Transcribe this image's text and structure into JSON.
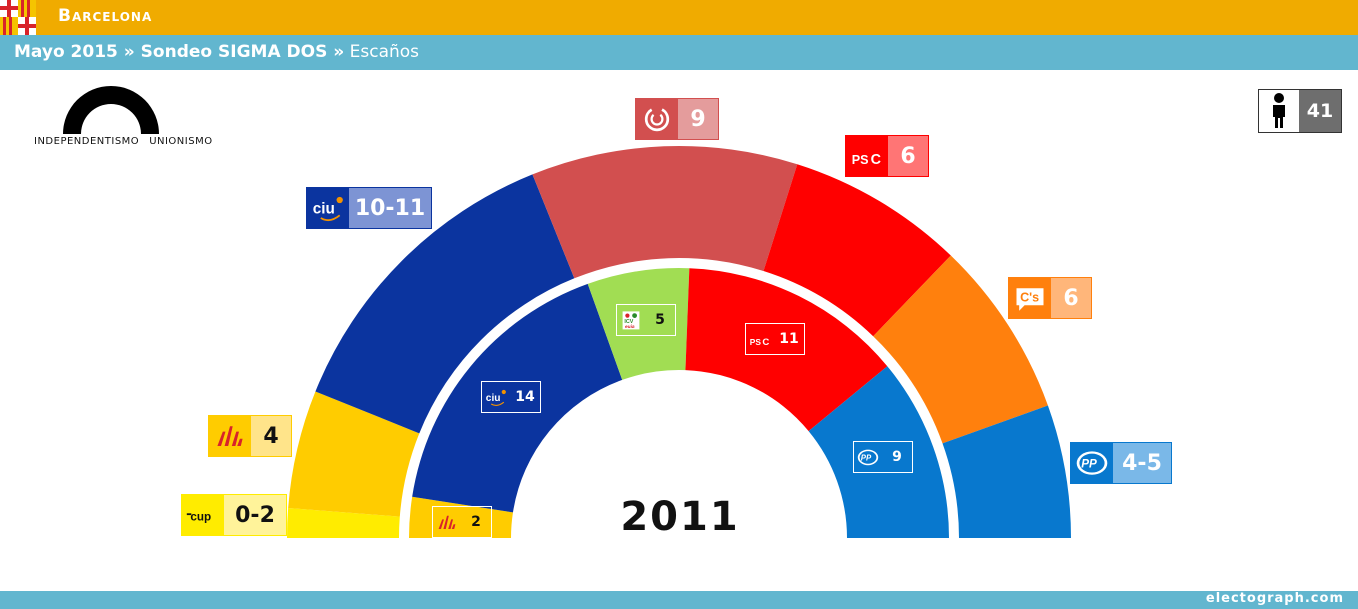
{
  "header": {
    "city": "Barcelona",
    "subtitle_bold": "Mayo 2015 » Sondeo SIGMA DOS »",
    "subtitle_rest": " Escaños"
  },
  "legend": {
    "left_label": "INDEPENDENTISMO",
    "right_label": "UNIONISMO"
  },
  "total_seats": {
    "icon": "person-icon",
    "value": "41"
  },
  "footer": {
    "credit": "electograph.com"
  },
  "chart_data": [
    {
      "type": "pie",
      "shape": "hemicycle-outer-ring",
      "title": "Sondeo SIGMA DOS",
      "total": 41,
      "parties": [
        {
          "name": "CUP",
          "logo_text": "cup",
          "label": "0-2",
          "seats": 1,
          "color": "#ffec00",
          "label_bg": "#fff39a"
        },
        {
          "name": "ERC",
          "logo_text": "ERC",
          "label": "4",
          "seats": 4,
          "color": "#ffcc00",
          "label_bg": "#ffe48a"
        },
        {
          "name": "CiU",
          "logo_text": "ciu",
          "label": "10-11",
          "seats": 10.5,
          "color": "#0b349f",
          "label_bg": "#7d94d4"
        },
        {
          "name": "BComú",
          "logo_text": "BC",
          "label": "9",
          "seats": 9,
          "color": "#d24f4f",
          "label_bg": "#e49c9c"
        },
        {
          "name": "PSC",
          "logo_text": "PSC",
          "label": "6",
          "seats": 6,
          "color": "#ff0000",
          "label_bg": "#ff7575"
        },
        {
          "name": "C's",
          "logo_text": "C's",
          "label": "6",
          "seats": 6,
          "color": "#ff800d",
          "label_bg": "#ffb67a"
        },
        {
          "name": "PP",
          "logo_text": "PP",
          "label": "4-5",
          "seats": 4.5,
          "color": "#0878ce",
          "label_bg": "#7ab8e8"
        }
      ]
    },
    {
      "type": "pie",
      "shape": "hemicycle-inner-ring",
      "title": "2011",
      "total": 41,
      "parties": [
        {
          "name": "ERC",
          "logo_text": "ERC",
          "label": "2",
          "seats": 2,
          "color": "#ffcc00"
        },
        {
          "name": "CiU",
          "logo_text": "ciu",
          "label": "14",
          "seats": 14,
          "color": "#0b349f"
        },
        {
          "name": "ICV-EUiA",
          "logo_text": "ICV",
          "label": "5",
          "seats": 5,
          "color": "#a1dd53"
        },
        {
          "name": "PSC",
          "logo_text": "PSC",
          "label": "11",
          "seats": 11,
          "color": "#ff0000"
        },
        {
          "name": "PP",
          "logo_text": "PP",
          "label": "9",
          "seats": 9,
          "color": "#0878ce"
        }
      ]
    }
  ]
}
